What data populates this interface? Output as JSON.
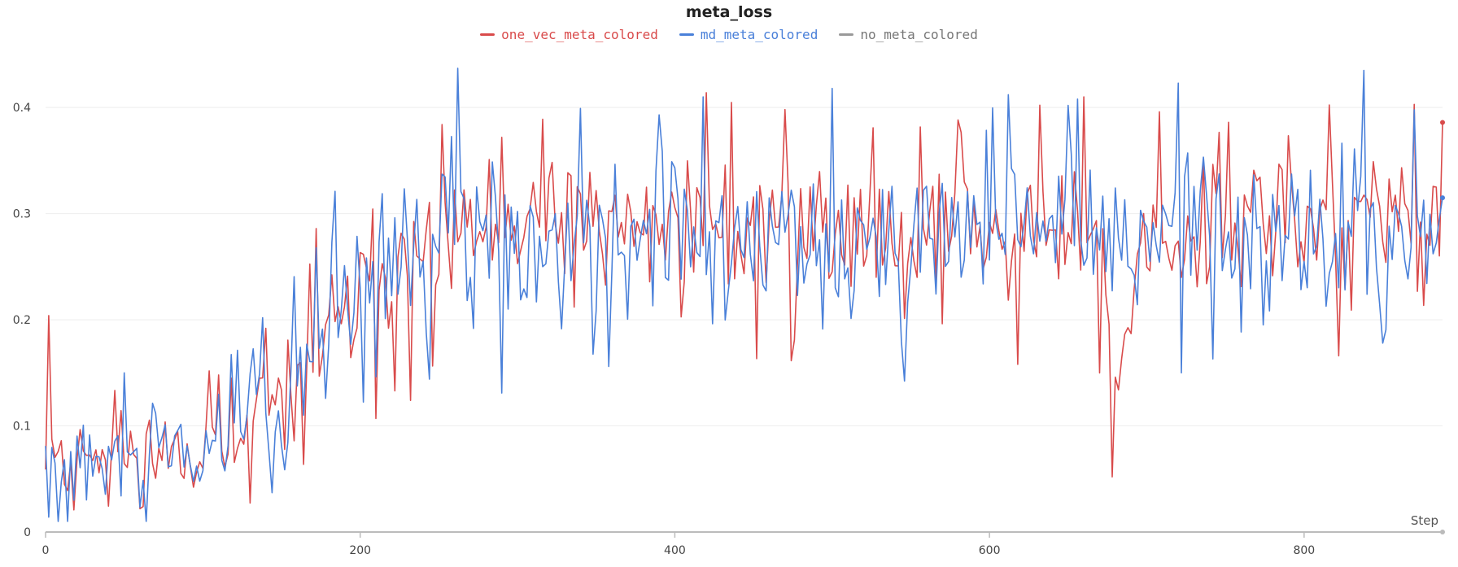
{
  "chart_data": {
    "type": "line",
    "title": "meta_loss",
    "xlabel": "Step",
    "ylabel": "",
    "xlim": [
      0,
      888
    ],
    "ylim": [
      0,
      0.44
    ],
    "x_ticks": [
      0,
      200,
      400,
      600,
      800
    ],
    "y_ticks": [
      0,
      0.1,
      0.2,
      0.3,
      0.4
    ],
    "x_tick_labels": [
      "0",
      "200",
      "400",
      "600",
      "800"
    ],
    "y_tick_labels": [
      "0",
      "0.1",
      "0.2",
      "0.3",
      "0.4"
    ],
    "grid": "horizontal",
    "legend_position": "top-center",
    "x_step": 2,
    "series": [
      {
        "name": "one_vec_meta_colored",
        "color": "#d94b4b",
        "seed": 11,
        "trend": [
          [
            0,
            0.08
          ],
          [
            8,
            0.085
          ],
          [
            60,
            0.075
          ],
          [
            120,
            0.085
          ],
          [
            150,
            0.12
          ],
          [
            175,
            0.17
          ],
          [
            200,
            0.22
          ],
          [
            230,
            0.25
          ],
          [
            260,
            0.28
          ],
          [
            400,
            0.29
          ],
          [
            600,
            0.285
          ],
          [
            650,
            0.29
          ],
          [
            672,
            0.25
          ],
          [
            678,
            0.08
          ],
          [
            684,
            0.2
          ],
          [
            700,
            0.28
          ],
          [
            800,
            0.29
          ],
          [
            888,
            0.3
          ]
        ],
        "amp": [
          [
            0,
            0.025
          ],
          [
            150,
            0.035
          ],
          [
            220,
            0.05
          ],
          [
            888,
            0.05
          ]
        ],
        "spikes": [
          [
            2,
            0.204
          ],
          [
            12,
            0.045
          ],
          [
            62,
            0.024
          ],
          [
            110,
            0.148
          ],
          [
            172,
            0.286
          ],
          [
            210,
            0.107
          ],
          [
            232,
            0.124
          ],
          [
            252,
            0.384
          ],
          [
            420,
            0.414
          ],
          [
            476,
            0.181
          ],
          [
            660,
            0.41
          ],
          [
            678,
            0.052
          ],
          [
            682,
            0.134
          ],
          [
            822,
            0.166
          ],
          [
            870,
            0.403
          ],
          [
            888,
            0.386
          ]
        ]
      },
      {
        "name": "md_meta_colored",
        "color": "#4a80d9",
        "seed": 29,
        "trend": [
          [
            0,
            0.07
          ],
          [
            8,
            0.065
          ],
          [
            60,
            0.07
          ],
          [
            120,
            0.08
          ],
          [
            150,
            0.13
          ],
          [
            180,
            0.18
          ],
          [
            200,
            0.22
          ],
          [
            230,
            0.26
          ],
          [
            260,
            0.28
          ],
          [
            888,
            0.28
          ]
        ],
        "amp": [
          [
            0,
            0.025
          ],
          [
            150,
            0.04
          ],
          [
            220,
            0.055
          ],
          [
            888,
            0.055
          ]
        ],
        "spikes": [
          [
            2,
            0.014
          ],
          [
            50,
            0.15
          ],
          [
            138,
            0.202
          ],
          [
            184,
            0.321
          ],
          [
            262,
            0.437
          ],
          [
            244,
            0.144
          ],
          [
            290,
            0.131
          ],
          [
            358,
            0.156
          ],
          [
            418,
            0.41
          ],
          [
            720,
            0.423
          ],
          [
            722,
            0.15
          ],
          [
            838,
            0.435
          ],
          [
            850,
            0.178
          ],
          [
            888,
            0.315
          ]
        ]
      },
      {
        "name": "no_meta_colored",
        "color": "#999999",
        "values": [
          0,
          0
        ]
      }
    ]
  }
}
